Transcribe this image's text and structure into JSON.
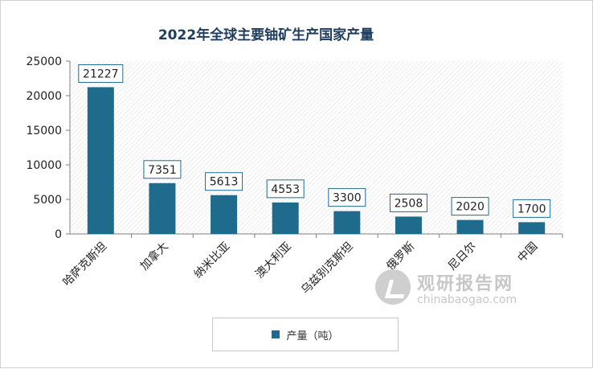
{
  "chart_data": {
    "type": "bar",
    "title": "2022年全球主要铀矿生产国家产量",
    "categories": [
      "哈萨克斯坦",
      "加拿大",
      "纳米比亚",
      "澳大利亚",
      "乌兹别克斯坦",
      "俄罗斯",
      "尼日尔",
      "中国"
    ],
    "series": [
      {
        "name": "产量（吨）",
        "values": [
          21227,
          7351,
          5613,
          4553,
          3300,
          2508,
          2020,
          1700
        ]
      }
    ],
    "ylim": [
      0,
      25000
    ],
    "yticks": [
      0,
      5000,
      10000,
      15000,
      20000,
      25000
    ],
    "grid": false,
    "legend_position": "bottom",
    "colors": {
      "bar": "#1f6b8e",
      "axis": "#7f7f7f",
      "label_border": "#1f6b8e"
    }
  },
  "watermark": {
    "title": "观研报告网",
    "url": "chinabaogao.com"
  }
}
